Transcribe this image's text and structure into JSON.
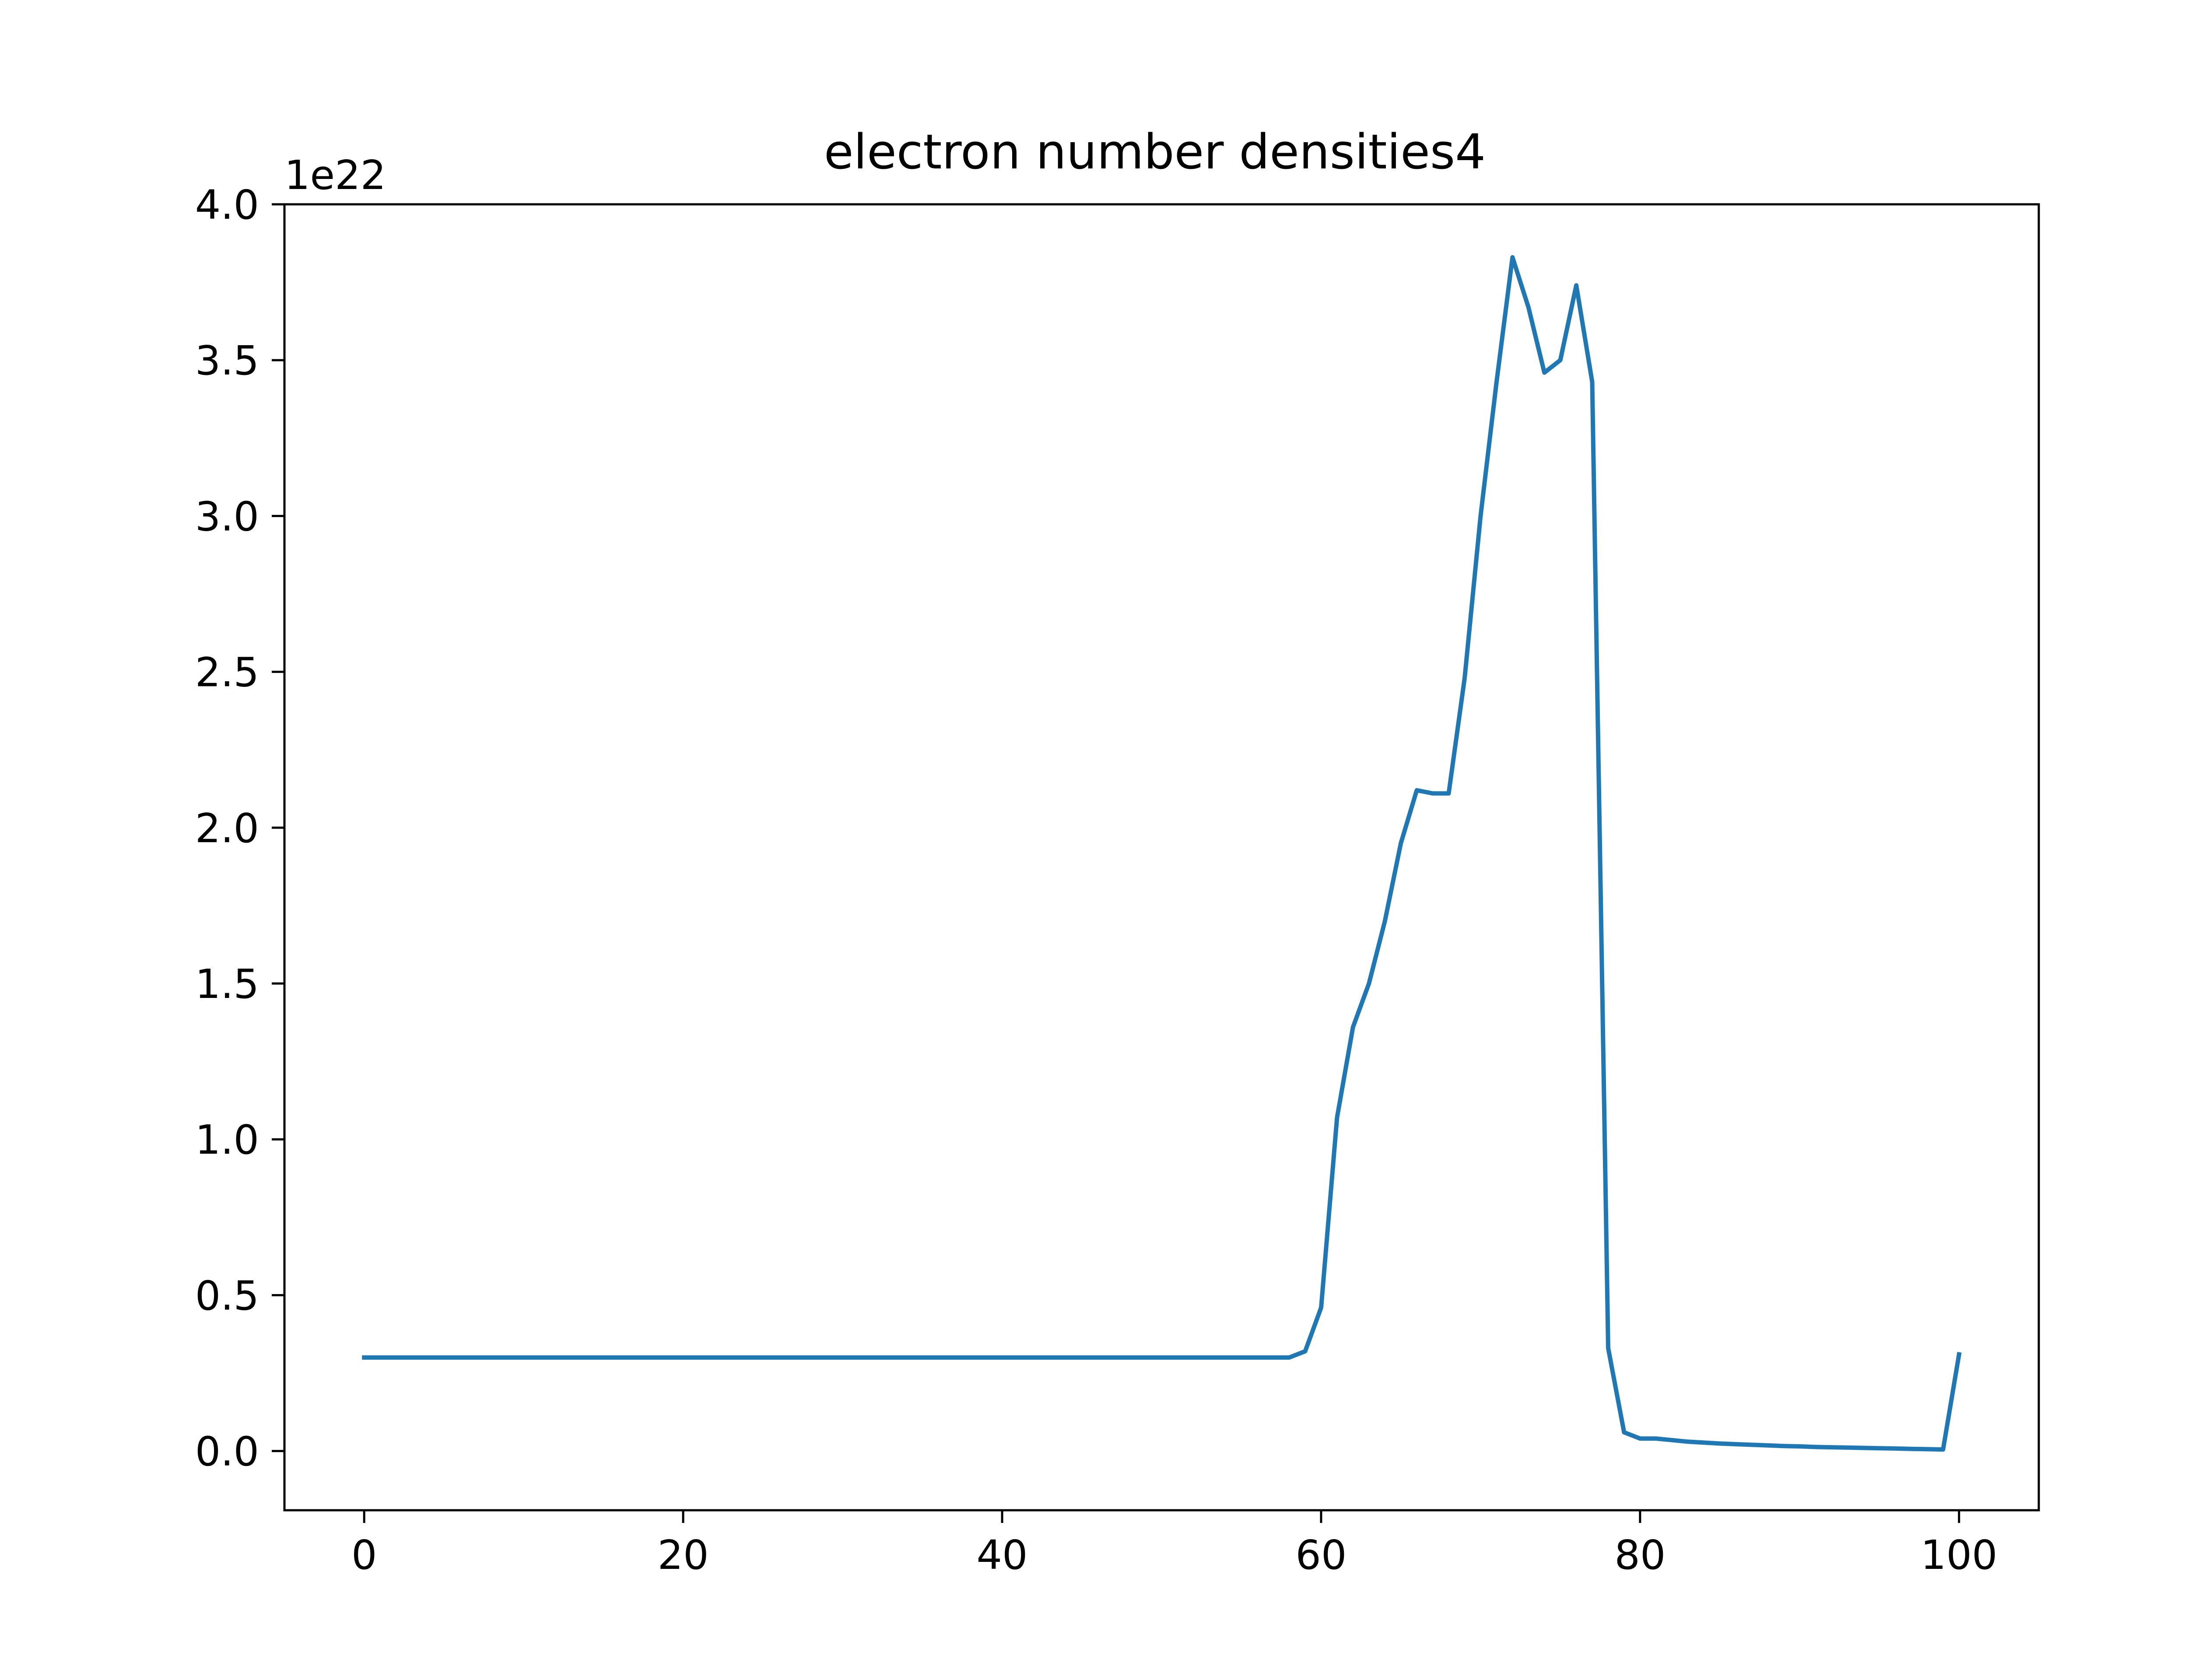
{
  "chart_data": {
    "type": "line",
    "title": "electron number densities4",
    "xlabel": "",
    "ylabel": "",
    "y_offset_label": "1e22",
    "xlim": [
      -5,
      105
    ],
    "ylim": [
      -0.19,
      4.0
    ],
    "y_multiplier": 1e+22,
    "grid": false,
    "x_ticks": [
      {
        "value": 0,
        "label": "0"
      },
      {
        "value": 20,
        "label": "20"
      },
      {
        "value": 40,
        "label": "40"
      },
      {
        "value": 60,
        "label": "60"
      },
      {
        "value": 80,
        "label": "80"
      },
      {
        "value": 100,
        "label": "100"
      }
    ],
    "y_ticks": [
      {
        "value": 0.0,
        "label": "0.0"
      },
      {
        "value": 0.5,
        "label": "0.5"
      },
      {
        "value": 1.0,
        "label": "1.0"
      },
      {
        "value": 1.5,
        "label": "1.5"
      },
      {
        "value": 2.0,
        "label": "2.0"
      },
      {
        "value": 2.5,
        "label": "2.5"
      },
      {
        "value": 3.0,
        "label": "3.0"
      },
      {
        "value": 3.5,
        "label": "3.5"
      },
      {
        "value": 4.0,
        "label": "4.0"
      }
    ],
    "series": [
      {
        "color": "#1f77b4",
        "x": [
          0,
          1,
          2,
          3,
          4,
          5,
          6,
          7,
          8,
          9,
          10,
          11,
          12,
          13,
          14,
          15,
          16,
          17,
          18,
          19,
          20,
          21,
          22,
          23,
          24,
          25,
          26,
          27,
          28,
          29,
          30,
          31,
          32,
          33,
          34,
          35,
          36,
          37,
          38,
          39,
          40,
          41,
          42,
          43,
          44,
          45,
          46,
          47,
          48,
          49,
          50,
          51,
          52,
          53,
          54,
          55,
          56,
          57,
          58,
          59,
          60,
          61,
          62,
          63,
          64,
          65,
          66,
          67,
          68,
          69,
          70,
          71,
          72,
          73,
          74,
          75,
          76,
          77,
          78,
          79,
          80,
          81,
          82,
          83,
          84,
          85,
          86,
          87,
          88,
          89,
          90,
          91,
          92,
          93,
          94,
          95,
          96,
          97,
          98,
          99,
          100
        ],
        "y": [
          0.3,
          0.3,
          0.3,
          0.3,
          0.3,
          0.3,
          0.3,
          0.3,
          0.3,
          0.3,
          0.3,
          0.3,
          0.3,
          0.3,
          0.3,
          0.3,
          0.3,
          0.3,
          0.3,
          0.3,
          0.3,
          0.3,
          0.3,
          0.3,
          0.3,
          0.3,
          0.3,
          0.3,
          0.3,
          0.3,
          0.3,
          0.3,
          0.3,
          0.3,
          0.3,
          0.3,
          0.3,
          0.3,
          0.3,
          0.3,
          0.3,
          0.3,
          0.3,
          0.3,
          0.3,
          0.3,
          0.3,
          0.3,
          0.3,
          0.3,
          0.3,
          0.3,
          0.3,
          0.3,
          0.3,
          0.3,
          0.3,
          0.3,
          0.3,
          0.32,
          0.46,
          1.07,
          1.36,
          1.5,
          1.7,
          1.95,
          2.12,
          2.11,
          2.11,
          2.48,
          3.0,
          3.43,
          3.83,
          3.67,
          3.46,
          3.5,
          3.74,
          3.43,
          0.33,
          0.06,
          0.04,
          0.04,
          0.035,
          0.03,
          0.027,
          0.024,
          0.022,
          0.02,
          0.018,
          0.016,
          0.015,
          0.013,
          0.012,
          0.011,
          0.01,
          0.009,
          0.008,
          0.007,
          0.006,
          0.005,
          0.31
        ]
      }
    ]
  }
}
